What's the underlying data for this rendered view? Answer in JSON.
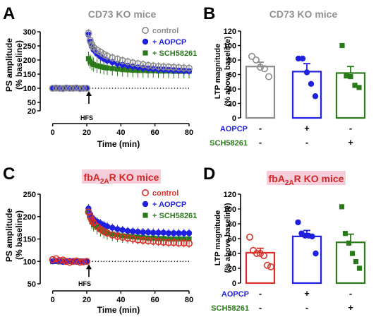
{
  "panels": {
    "A": {
      "letter": "A",
      "title": "CD73 KO mice",
      "ylabel": [
        "PS amplitude",
        "(% baseline)"
      ],
      "xlabel": "Time (min)",
      "annotation": "HFS"
    },
    "B": {
      "letter": "B",
      "title": "CD73 KO mice",
      "ylabel": [
        "LTP magnitude",
        "(% above baseline)"
      ],
      "row_labels": [
        "AOPCP",
        "SCH58261"
      ],
      "signs": [
        [
          "-",
          "+",
          "-"
        ],
        [
          "-",
          "-",
          "+"
        ]
      ]
    },
    "C": {
      "letter": "C",
      "title_parts": [
        "fbA",
        "2A",
        "R KO mice"
      ],
      "ylabel": [
        "PS amplitude",
        "(% baseline)"
      ],
      "xlabel": "Time (min)",
      "annotation": "HFS"
    },
    "D": {
      "letter": "D",
      "title_parts": [
        "fbA",
        "2A",
        "R KO mice"
      ],
      "ylabel": [
        "LTP magnitude",
        "(% above baseline)"
      ],
      "row_labels": [
        "AOPCP",
        "SCH58261"
      ],
      "signs": [
        [
          "-",
          "+",
          "-"
        ],
        [
          "-",
          "-",
          "+"
        ]
      ]
    }
  },
  "colors": {
    "control_A": "#8c8c8c",
    "control_C": "#d9302a",
    "aopcp": "#1f1fe0",
    "sch": "#2a7a1a",
    "title_gray": "#909090",
    "title_red": "#d42424",
    "highlight": "#f4cfdb"
  },
  "chart_data": [
    {
      "panel": "A",
      "type": "scatter",
      "xlabel": "Time (min)",
      "ylabel": "PS amplitude (% baseline)",
      "xlim": [
        -4,
        80
      ],
      "ylim": [
        0,
        300
      ],
      "xticks": [
        0,
        20,
        40,
        60,
        80
      ],
      "yticks": [
        20,
        50,
        100,
        150,
        200,
        250,
        300
      ],
      "baseline": 100,
      "hfs_time": 20,
      "series": [
        {
          "name": "control",
          "marker": "open-circle",
          "color": "#8c8c8c",
          "x": [
            0,
            2,
            4,
            6,
            8,
            10,
            12,
            14,
            16,
            18,
            20,
            21,
            22,
            23,
            24,
            26,
            28,
            30,
            32,
            35,
            38,
            41,
            44,
            47,
            50,
            53,
            56,
            59,
            62,
            65,
            68,
            71,
            74,
            77,
            80
          ],
          "y": [
            100,
            101,
            100,
            99,
            101,
            100,
            100,
            101,
            99,
            100,
            100,
            295,
            270,
            255,
            245,
            235,
            228,
            220,
            214,
            208,
            203,
            198,
            194,
            190,
            187,
            184,
            181,
            179,
            177,
            176,
            175,
            174,
            173,
            172,
            171
          ]
        },
        {
          "name": "+ AOPCP",
          "marker": "filled-circle",
          "color": "#1f1fe0",
          "x": [
            0,
            2,
            4,
            6,
            8,
            10,
            12,
            14,
            16,
            18,
            20,
            21,
            22,
            23,
            24,
            26,
            28,
            30,
            32,
            35,
            38,
            41,
            44,
            47,
            50,
            53,
            56,
            59,
            62,
            65,
            68,
            71,
            74,
            77,
            80
          ],
          "y": [
            100,
            99,
            100,
            101,
            100,
            99,
            100,
            100,
            101,
            100,
            100,
            290,
            265,
            248,
            236,
            222,
            212,
            204,
            198,
            192,
            187,
            183,
            180,
            177,
            174,
            172,
            170,
            168,
            167,
            166,
            165,
            164,
            163,
            162,
            161
          ]
        },
        {
          "name": "+ SCH58261",
          "marker": "filled-square",
          "color": "#2a7a1a",
          "x": [
            0,
            2,
            4,
            6,
            8,
            10,
            12,
            14,
            16,
            18,
            20,
            21,
            22,
            23,
            24,
            26,
            28,
            30,
            32,
            35,
            38,
            41,
            44,
            47,
            50,
            53,
            56,
            59,
            62,
            65,
            68,
            71,
            74,
            77,
            80
          ],
          "y": [
            100,
            100,
            101,
            99,
            100,
            100,
            101,
            100,
            99,
            100,
            100,
            205,
            195,
            188,
            184,
            180,
            177,
            174,
            172,
            170,
            168,
            166,
            165,
            164,
            163,
            163,
            162,
            162,
            161,
            161,
            161,
            160,
            160,
            160,
            160
          ]
        }
      ],
      "legend": "top-right"
    },
    {
      "panel": "B",
      "type": "bar",
      "ylabel": "LTP magnitude (% above baseline)",
      "ylim": [
        0,
        120
      ],
      "yticks": [
        0,
        20,
        40,
        60,
        80,
        100,
        120
      ],
      "categories": [
        "control",
        "+ AOPCP",
        "+ SCH58261"
      ],
      "values": [
        71,
        64,
        62
      ],
      "sem": [
        6,
        11,
        9
      ],
      "points": [
        [
          85,
          80,
          70,
          68,
          57
        ],
        [
          82,
          82,
          63,
          47,
          30
        ],
        [
          100,
          58,
          57,
          45,
          42
        ]
      ],
      "bar_colors": [
        "#8c8c8c",
        "#1f1fe0",
        "#2a7a1a"
      ]
    },
    {
      "panel": "C",
      "type": "scatter",
      "xlabel": "Time (min)",
      "ylabel": "PS amplitude (% baseline)",
      "xlim": [
        -4,
        80
      ],
      "ylim": [
        50,
        250
      ],
      "xticks": [
        0,
        20,
        40,
        60,
        80
      ],
      "yticks": [
        50,
        100,
        150,
        200,
        250
      ],
      "baseline": 100,
      "hfs_time": 20,
      "series": [
        {
          "name": "control",
          "marker": "open-circle",
          "color": "#d9302a",
          "x": [
            0,
            2,
            4,
            6,
            8,
            10,
            12,
            14,
            16,
            18,
            20,
            21,
            22,
            23,
            24,
            26,
            28,
            30,
            32,
            35,
            38,
            41,
            44,
            47,
            50,
            53,
            56,
            59,
            62,
            65,
            68,
            71,
            74,
            77,
            80
          ],
          "y": [
            104,
            106,
            102,
            103,
            100,
            98,
            100,
            101,
            98,
            99,
            100,
            210,
            200,
            192,
            186,
            178,
            172,
            167,
            163,
            159,
            156,
            154,
            152,
            150,
            148,
            147,
            146,
            145,
            144,
            143,
            142,
            142,
            141,
            141,
            140
          ]
        },
        {
          "name": "+ AOPCP",
          "marker": "filled-circle",
          "color": "#1f1fe0",
          "x": [
            0,
            2,
            4,
            6,
            8,
            10,
            12,
            14,
            16,
            18,
            20,
            21,
            22,
            23,
            24,
            26,
            28,
            30,
            32,
            35,
            38,
            41,
            44,
            47,
            50,
            53,
            56,
            59,
            62,
            65,
            68,
            71,
            74,
            77,
            80
          ],
          "y": [
            100,
            101,
            100,
            99,
            100,
            101,
            100,
            99,
            100,
            100,
            100,
            218,
            205,
            198,
            194,
            189,
            185,
            181,
            178,
            175,
            172,
            170,
            168,
            167,
            166,
            165,
            165,
            164,
            164,
            164,
            163,
            163,
            163,
            163,
            163
          ]
        },
        {
          "name": "+ SCH58261",
          "marker": "filled-square",
          "color": "#2a7a1a",
          "x": [
            0,
            2,
            4,
            6,
            8,
            10,
            12,
            14,
            16,
            18,
            20,
            21,
            22,
            23,
            24,
            26,
            28,
            30,
            32,
            35,
            38,
            41,
            44,
            47,
            50,
            53,
            56,
            59,
            62,
            65,
            68,
            71,
            74,
            77,
            80
          ],
          "y": [
            100,
            100,
            99,
            101,
            100,
            100,
            99,
            100,
            101,
            100,
            100,
            212,
            198,
            188,
            182,
            176,
            171,
            167,
            164,
            161,
            159,
            157,
            156,
            155,
            154,
            153,
            152,
            152,
            151,
            151,
            150,
            150,
            150,
            150,
            150
          ]
        }
      ],
      "legend": "top-right"
    },
    {
      "panel": "D",
      "type": "bar",
      "ylabel": "LTP magnitude (% above baseline)",
      "ylim": [
        0,
        120
      ],
      "yticks": [
        0,
        20,
        40,
        60,
        80,
        100,
        120
      ],
      "categories": [
        "control",
        "+ AOPCP",
        "+ SCH58261"
      ],
      "values": [
        41,
        63,
        55
      ],
      "sem": [
        6,
        8,
        11
      ],
      "points": [
        [
          62,
          44,
          40,
          40,
          37,
          24,
          22
        ],
        [
          82,
          67,
          64,
          64,
          63,
          40
        ],
        [
          103,
          67,
          54,
          40,
          29,
          20
        ]
      ],
      "bar_colors": [
        "#d9302a",
        "#1f1fe0",
        "#2a7a1a"
      ]
    }
  ]
}
